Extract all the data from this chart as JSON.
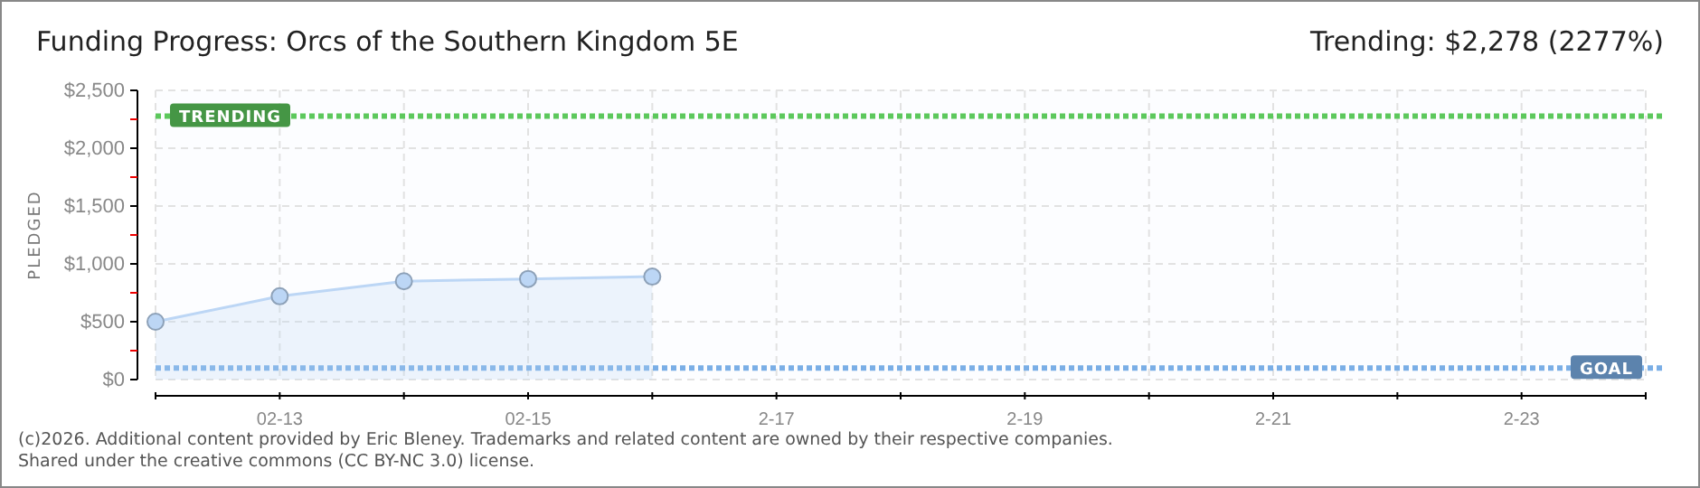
{
  "chart_data": {
    "type": "area",
    "title": "Funding Progress: Orcs of the Southern Kingdom 5E",
    "subtitle": "Trending: $2,278 (2277%)",
    "ylabel": "PLEDGED",
    "x": [
      "2026-02-12",
      "2026-02-13",
      "2026-02-14",
      "2026-02-15",
      "2026-02-16"
    ],
    "series": [
      {
        "color": "#bcd6f5",
        "values": [
          500,
          720,
          850,
          870,
          890
        ]
      }
    ],
    "marker": "circle",
    "grid": true,
    "xlim": [
      "2026-02-12",
      "2026-02-24"
    ],
    "xticks": [
      {
        "value": "2026-02-12",
        "label": null
      },
      {
        "value": "2026-02-13",
        "label": "02-13"
      },
      {
        "value": "2026-02-14",
        "label": null
      },
      {
        "value": "2026-02-15",
        "label": "02-15"
      },
      {
        "value": "2026-02-16",
        "label": null
      },
      {
        "value": "2026-02-17",
        "label": "2-17"
      },
      {
        "value": "2026-02-18",
        "label": null
      },
      {
        "value": "2026-02-19",
        "label": "2-19"
      },
      {
        "value": "2026-02-20",
        "label": null
      },
      {
        "value": "2026-02-21",
        "label": "2-21"
      },
      {
        "value": "2026-02-22",
        "label": null
      },
      {
        "value": "2026-02-23",
        "label": "2-23"
      },
      {
        "value": "2026-02-24",
        "label": null
      }
    ],
    "ylim": [
      0,
      2500
    ],
    "yticks": [
      {
        "value": 0,
        "label": "$0"
      },
      {
        "value": 250,
        "label": null
      },
      {
        "value": 500,
        "label": "$500"
      },
      {
        "value": 750,
        "label": null
      },
      {
        "value": 1000,
        "label": "$1,000"
      },
      {
        "value": 1250,
        "label": null
      },
      {
        "value": 1500,
        "label": "$1,500"
      },
      {
        "value": 1750,
        "label": null
      },
      {
        "value": 2000,
        "label": "$2,000"
      },
      {
        "value": 2250,
        "label": null
      },
      {
        "value": 2500,
        "label": "$2,500"
      }
    ],
    "ref_lines": [
      {
        "axis": "y",
        "value": 2278,
        "label": "TRENDING",
        "color": "#5cc85c",
        "line_style": "dashed"
      },
      {
        "axis": "y",
        "value": 100,
        "label": "GOAL",
        "color": "#7aaee6",
        "line_style": "dashed"
      }
    ],
    "annotations": [
      "(c)2026. Additional content provided by Eric Bleney. Trademarks and related content are owned by their respective companies.",
      "Shared under the creative commons (CC BY-NC 3.0) license."
    ]
  }
}
